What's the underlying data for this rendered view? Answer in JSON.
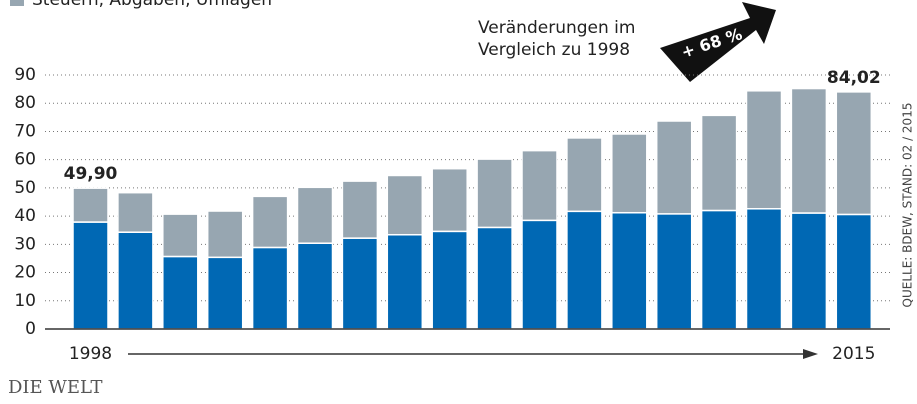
{
  "chart_data": {
    "type": "stacked-bar",
    "legend": "Steuern, Abgaben, Umlagen",
    "categories": [
      "1998",
      null,
      null,
      null,
      null,
      null,
      null,
      null,
      null,
      null,
      null,
      null,
      null,
      null,
      null,
      null,
      null,
      "2015"
    ],
    "series": [
      {
        "color": "#0068b4",
        "values": [
          37.9,
          34.3,
          25.7,
          25.4,
          28.9,
          30.4,
          32.2,
          33.4,
          34.6,
          36.0,
          38.5,
          41.7,
          41.2,
          40.8,
          42.0,
          42.6,
          41.1,
          40.6
        ]
      },
      {
        "name": "Steuern, Abgaben, Umlagen",
        "color": "#97a6b1",
        "values": [
          12.0,
          14.0,
          15.0,
          16.4,
          18.1,
          19.8,
          20.2,
          21.0,
          22.2,
          24.2,
          24.7,
          26.0,
          27.9,
          32.9,
          33.7,
          41.8,
          44.1,
          43.42
        ]
      }
    ],
    "annotations": [
      "49,90",
      "84,02"
    ],
    "change_text": [
      "Veränderungen im",
      "Vergleich zu 1998"
    ],
    "change_value": "+ 68 %",
    "source": "QUELLE: BDEW, STAND: 02 / 2015",
    "brand": "DIE WELT",
    "ylim": [
      0,
      90
    ],
    "yticks": [
      0,
      10,
      20,
      30,
      40,
      50,
      60,
      70,
      80,
      90
    ],
    "grid": true
  }
}
